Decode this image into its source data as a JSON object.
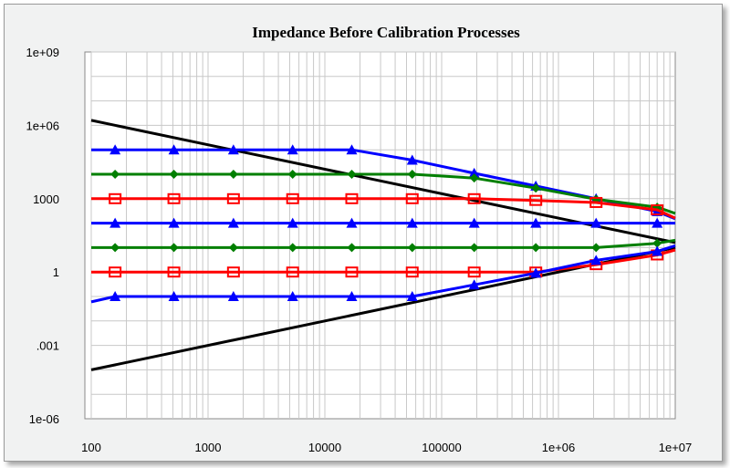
{
  "chart_data": {
    "type": "line",
    "title": "Impedance Before Calibration Processes",
    "xlabel": "",
    "ylabel": "",
    "x_scale": "log",
    "y_scale": "log",
    "xlim": [
      100,
      10000000
    ],
    "ylim": [
      1e-06,
      1000000000
    ],
    "x_tick_labels": [
      "100",
      "1000",
      "10000",
      "100000",
      "1e+06",
      "1e+07"
    ],
    "x_tick_values": [
      100,
      1000,
      10000,
      100000,
      1000000,
      10000000
    ],
    "y_tick_labels": [
      "1e+09",
      "1e+06",
      "1000",
      "1",
      ".001",
      "1e-06"
    ],
    "y_tick_values": [
      1000000000,
      1000000,
      1000,
      1,
      0.001,
      1e-06
    ],
    "grid": true,
    "legend": "none",
    "colors": {
      "background": "#ffffff",
      "frame": "#f1f2f2",
      "grid": "#c8c8c8",
      "black": "#000000",
      "blue": "#0000ff",
      "green": "#007f00",
      "red": "#ff0000"
    },
    "marker_x": [
      160,
      510,
      1650,
      5300,
      17000,
      56000,
      190000,
      640000,
      2100000,
      7000000
    ],
    "series": [
      {
        "color": "black",
        "marker": "none",
        "x": [
          100,
          10000000
        ],
        "y": [
          1600000,
          16
        ]
      },
      {
        "color": "black",
        "marker": "none",
        "x": [
          100,
          10000000
        ],
        "y": [
          0.0001,
          10
        ]
      },
      {
        "color": "blue",
        "marker": "triangle",
        "x": [
          100,
          17000,
          56000,
          190000,
          640000,
          2100000,
          7000000,
          10000000
        ],
        "y": [
          100000,
          100000,
          38000,
          11000,
          3300,
          1000,
          300,
          150
        ]
      },
      {
        "color": "green",
        "marker": "diamond",
        "x": [
          100,
          56000,
          190000,
          640000,
          2100000,
          7000000,
          10000000
        ],
        "y": [
          10000,
          10000,
          7000,
          2700,
          950,
          450,
          250
        ]
      },
      {
        "color": "red",
        "marker": "square",
        "x": [
          100,
          190000,
          640000,
          2100000,
          7000000,
          10000000
        ],
        "y": [
          1000,
          1000,
          850,
          700,
          350,
          160
        ]
      },
      {
        "color": "blue",
        "marker": "triangle",
        "x": [
          100,
          10000000
        ],
        "y": [
          100,
          100
        ]
      },
      {
        "color": "green",
        "marker": "diamond",
        "x": [
          100,
          2100000,
          7000000,
          10000000
        ],
        "y": [
          10,
          10,
          15,
          20
        ]
      },
      {
        "color": "red",
        "marker": "square",
        "x": [
          100,
          640000,
          2100000,
          7000000,
          10000000
        ],
        "y": [
          1,
          1,
          2,
          5,
          8
        ]
      },
      {
        "color": "blue",
        "marker": "triangle",
        "x": [
          100,
          160,
          56000,
          190000,
          640000,
          2100000,
          7000000,
          10000000
        ],
        "y": [
          0.06,
          0.1,
          0.1,
          0.3,
          0.9,
          3,
          7,
          12
        ]
      }
    ]
  }
}
